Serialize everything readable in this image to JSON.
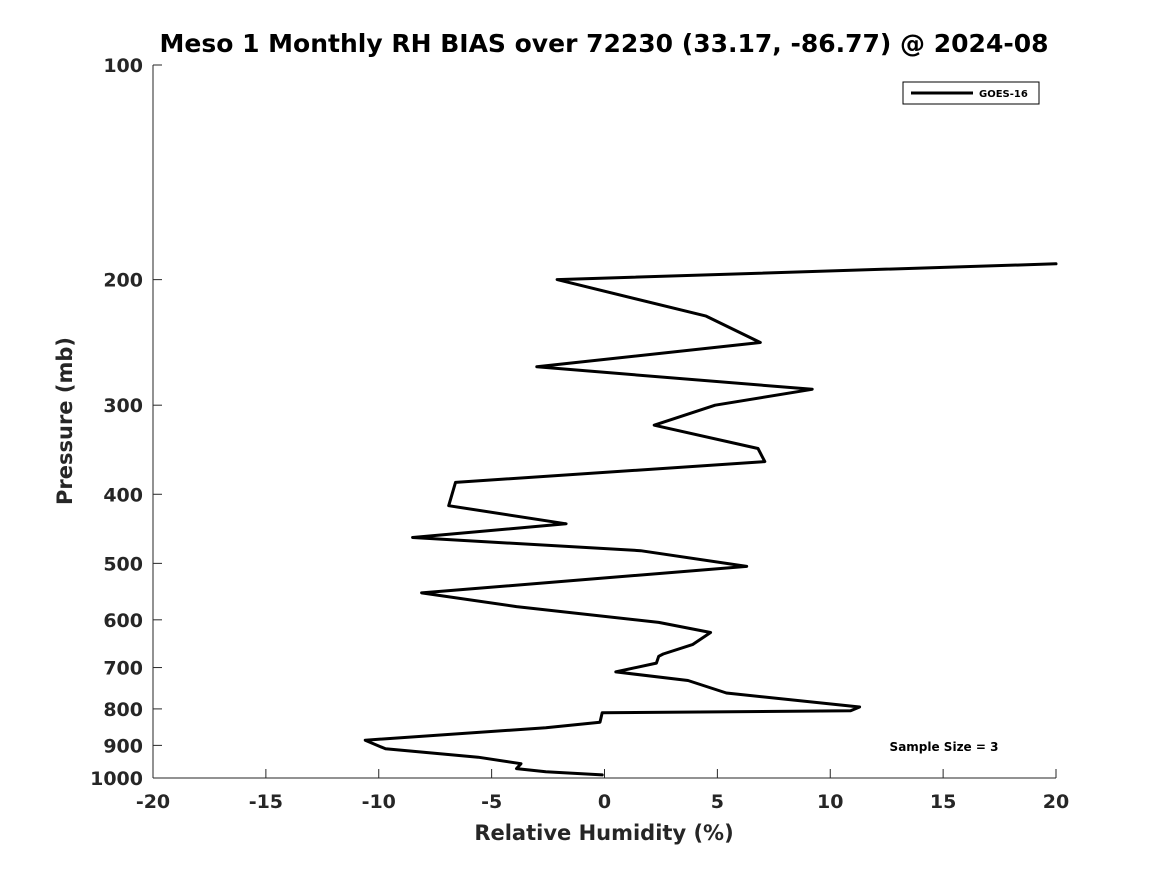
{
  "chart_data": {
    "type": "line",
    "title": "Meso 1 Monthly RH BIAS over 72230 (33.17, -86.77) @ 2024-08",
    "xlabel": "Relative Humidity (%)",
    "ylabel": "Pressure (mb)",
    "xlim": [
      -20,
      20
    ],
    "ylim": [
      1000,
      100
    ],
    "y_scale": "log",
    "x_ticks": [
      "-20",
      "-15",
      "-10",
      "-5",
      "0",
      "5",
      "10",
      "15",
      "20"
    ],
    "y_ticks": [
      "100",
      "200",
      "300",
      "400",
      "500",
      "600",
      "700",
      "800",
      "900",
      "1000"
    ],
    "x_tick_values": [
      -20,
      -15,
      -10,
      -5,
      0,
      5,
      10,
      15,
      20
    ],
    "y_tick_values": [
      100,
      200,
      300,
      400,
      500,
      600,
      700,
      800,
      900,
      1000
    ],
    "grid": false,
    "legend_position": "top-right",
    "series": [
      {
        "name": "GOES-16",
        "color": "#000000",
        "points": [
          [
            20.0,
            190
          ],
          [
            -2.1,
            200
          ],
          [
            4.5,
            225
          ],
          [
            6.9,
            245
          ],
          [
            -3.0,
            265
          ],
          [
            9.2,
            285
          ],
          [
            4.9,
            300
          ],
          [
            2.2,
            320
          ],
          [
            6.8,
            345
          ],
          [
            7.1,
            360
          ],
          [
            -6.6,
            385
          ],
          [
            -6.9,
            415
          ],
          [
            -1.7,
            440
          ],
          [
            -8.5,
            460
          ],
          [
            1.6,
            480
          ],
          [
            6.3,
            505
          ],
          [
            -0.3,
            525
          ],
          [
            -8.1,
            550
          ],
          [
            -3.9,
            575
          ],
          [
            2.4,
            605
          ],
          [
            4.7,
            625
          ],
          [
            3.9,
            650
          ],
          [
            2.6,
            670
          ],
          [
            2.4,
            675
          ],
          [
            2.3,
            690
          ],
          [
            0.5,
            710
          ],
          [
            3.7,
            730
          ],
          [
            5.4,
            760
          ],
          [
            11.3,
            795
          ],
          [
            10.9,
            805
          ],
          [
            -0.1,
            810
          ],
          [
            -0.2,
            835
          ],
          [
            -2.6,
            850
          ],
          [
            -10.6,
            885
          ],
          [
            -9.7,
            910
          ],
          [
            -5.6,
            935
          ],
          [
            -3.7,
            955
          ],
          [
            -3.9,
            970
          ],
          [
            -2.6,
            980
          ],
          [
            -0.1,
            990
          ]
        ]
      }
    ],
    "annotation": "Sample Size = 3"
  }
}
